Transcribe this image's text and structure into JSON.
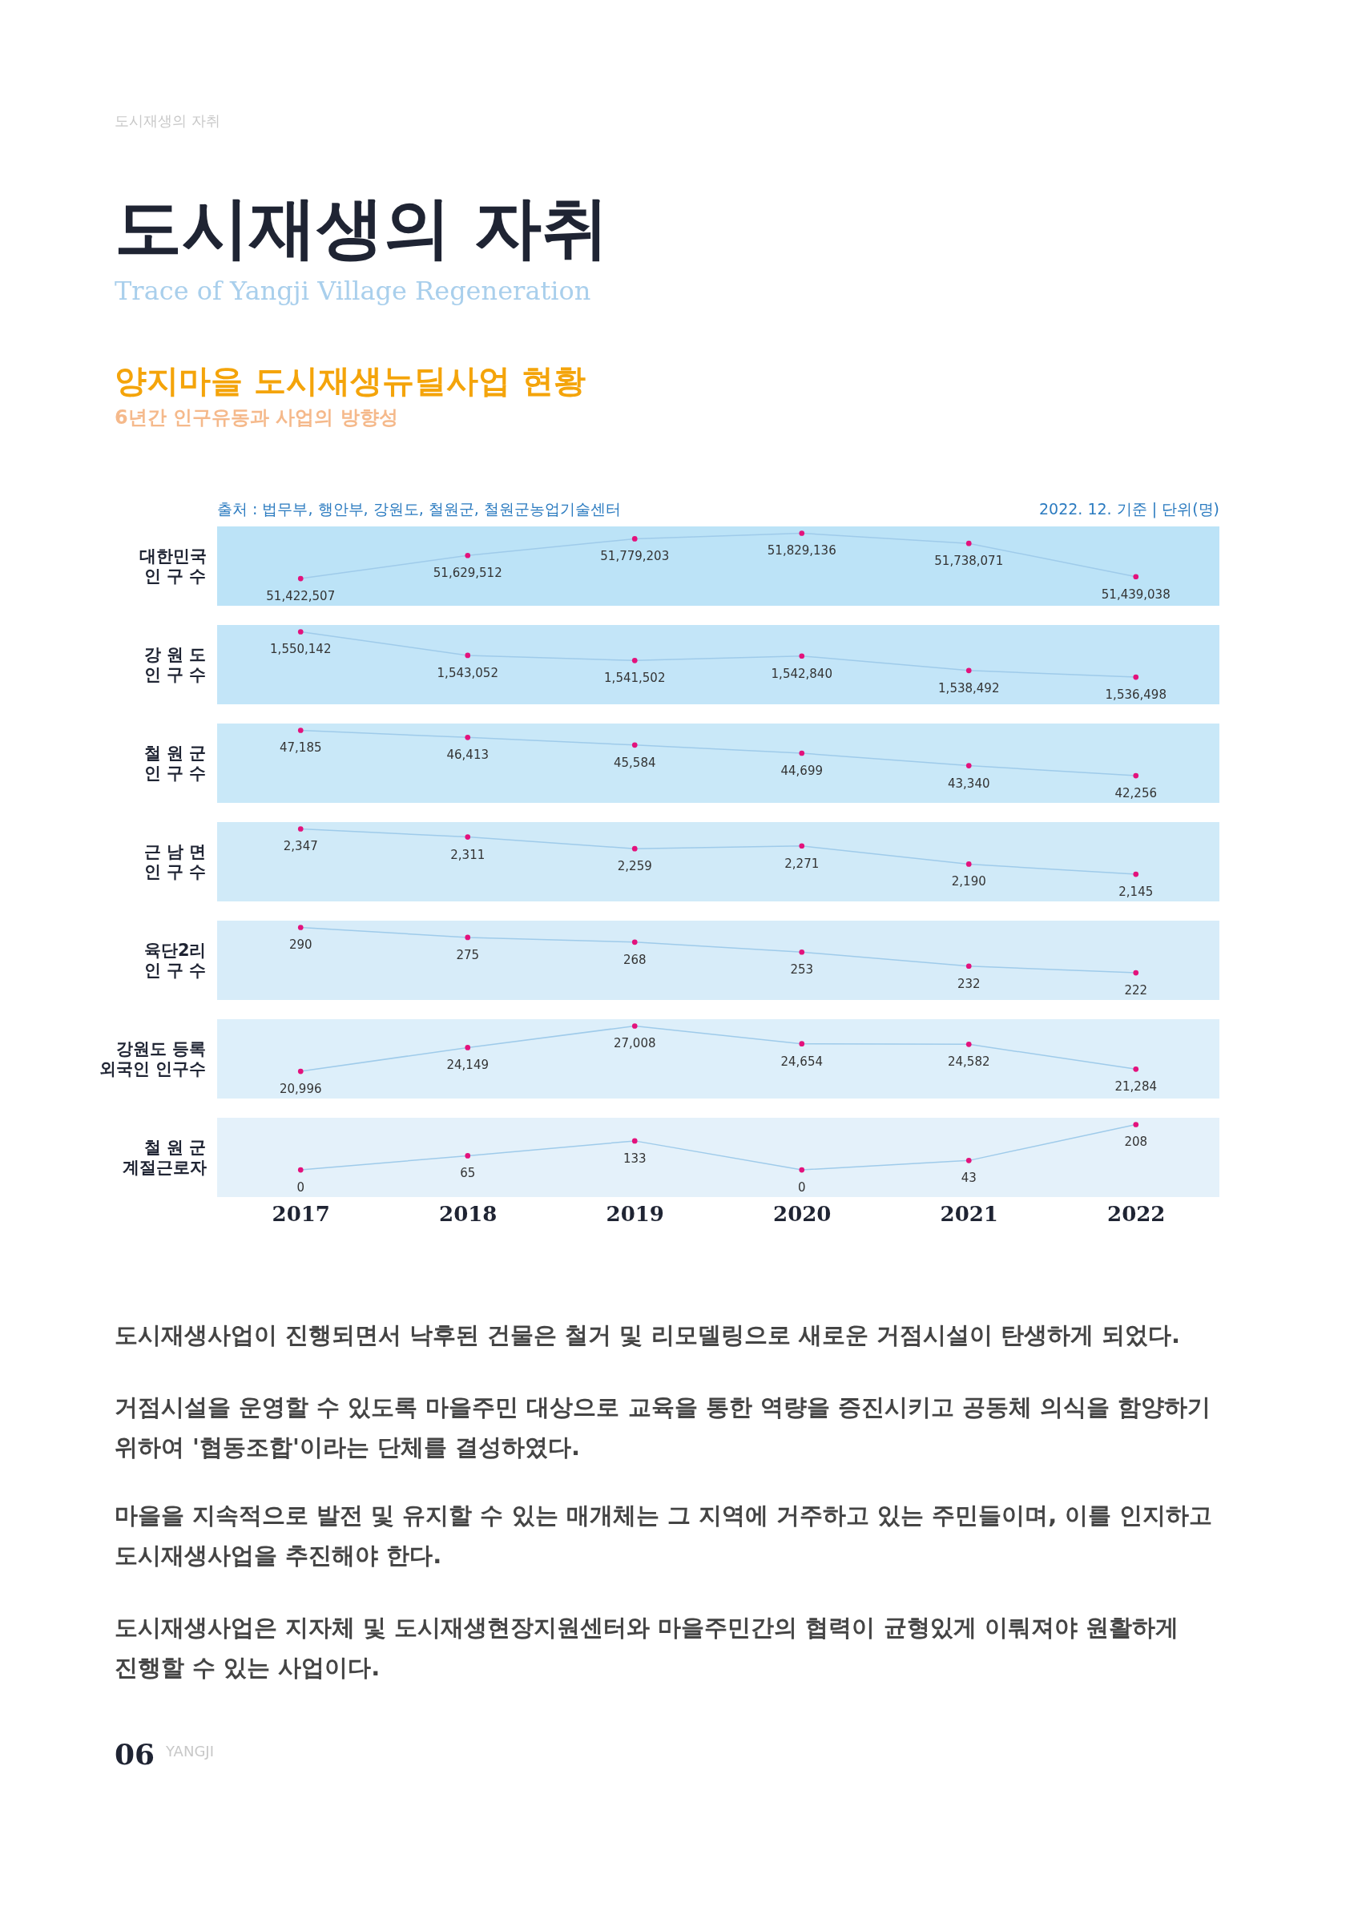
{
  "chart_data": [
    {
      "type": "line",
      "title": "양지마을 도시재생뉴딜사업 현황",
      "subtitle": "6년간 인구유동과 사업의 방향성",
      "annotations": [
        "도시재생의 자취",
        "도시재생의 자취",
        "Trace of Yangji Village Regeneration",
        "출처 : 법무부, 행안부, 강원도, 철원군, 철원군농업기술센터",
        "2022. 12. 기준 | 단위(명)"
      ],
      "ylabel": "대한민국\n인 구 수",
      "categories": [
        "2017",
        "2018",
        "2019",
        "2020",
        "2021",
        "2022"
      ],
      "series": [
        {
          "color": "#e3127c",
          "values": [
            51422507,
            51629512,
            51779203,
            51829136,
            51738071,
            51439038
          ],
          "value_labels": [
            "51,422,507",
            "51,629,512",
            "51,779,203",
            "51,829,136",
            "51,738,071",
            "51,439,038"
          ]
        }
      ],
      "marker": "circle",
      "line_style": "solid",
      "tick_labels": false
    },
    {
      "type": "line",
      "ylabel": "강 원 도\n인 구 수",
      "categories": [
        "2017",
        "2018",
        "2019",
        "2020",
        "2021",
        "2022"
      ],
      "series": [
        {
          "color": "#e3127c",
          "values": [
            1550142,
            1543052,
            1541502,
            1542840,
            1538492,
            1536498
          ],
          "value_labels": [
            "1,550,142",
            "1,543,052",
            "1,541,502",
            "1,542,840",
            "1,538,492",
            "1,536,498"
          ]
        }
      ],
      "marker": "circle",
      "line_style": "solid",
      "tick_labels": false
    },
    {
      "type": "line",
      "ylabel": "철 원 군\n인 구 수",
      "categories": [
        "2017",
        "2018",
        "2019",
        "2020",
        "2021",
        "2022"
      ],
      "series": [
        {
          "color": "#e3127c",
          "values": [
            47185,
            46413,
            45584,
            44699,
            43340,
            42256
          ],
          "value_labels": [
            "47,185",
            "46,413",
            "45,584",
            "44,699",
            "43,340",
            "42,256"
          ]
        }
      ],
      "marker": "circle",
      "line_style": "solid",
      "tick_labels": false
    },
    {
      "type": "line",
      "ylabel": "근 남 면\n인 구 수",
      "categories": [
        "2017",
        "2018",
        "2019",
        "2020",
        "2021",
        "2022"
      ],
      "series": [
        {
          "color": "#e3127c",
          "values": [
            2347,
            2311,
            2259,
            2271,
            2190,
            2145
          ],
          "value_labels": [
            "2,347",
            "2,311",
            "2,259",
            "2,271",
            "2,190",
            "2,145"
          ]
        }
      ],
      "marker": "circle",
      "line_style": "solid",
      "tick_labels": false
    },
    {
      "type": "line",
      "ylabel": "육단2리\n인 구 수",
      "categories": [
        "2017",
        "2018",
        "2019",
        "2020",
        "2021",
        "2022"
      ],
      "series": [
        {
          "color": "#e3127c",
          "values": [
            290,
            275,
            268,
            253,
            232,
            222
          ]
        }
      ],
      "data_labels": true,
      "marker": "circle",
      "line_style": "solid",
      "tick_labels": false
    },
    {
      "type": "line",
      "ylabel": "강원도 등록\n외국인 인구수",
      "categories": [
        "2017",
        "2018",
        "2019",
        "2020",
        "2021",
        "2022"
      ],
      "series": [
        {
          "color": "#e3127c",
          "values": [
            20996,
            24149,
            27008,
            24654,
            24582,
            21284
          ],
          "value_labels": [
            "20,996",
            "24,149",
            "27,008",
            "24,654",
            "24,582",
            "21,284"
          ]
        }
      ],
      "marker": "circle",
      "line_style": "solid",
      "tick_labels": false
    },
    {
      "type": "line",
      "ylabel": "철 원 군\n계절근로자",
      "categories": [
        "2017",
        "2018",
        "2019",
        "2020",
        "2021",
        "2022"
      ],
      "series": [
        {
          "color": "#e3127c",
          "values": [
            0,
            65,
            133,
            0,
            43,
            208
          ]
        }
      ],
      "data_labels": true,
      "marker": "circle",
      "line_style": "solid",
      "tick_labels": "x",
      "annotations": [
        "도시재생사업이 진행되면서 낙후된 건물은 철거 및 리모델링으로 새로운 거점시설이 탄생하게 되었다.",
        "거점시설을 운영할 수 있도록 마을주민 대상으로 교육을 통한 역량을 증진시키고 공동체 의식을 함양하기\n위하여 '협동조합'이라는 단체를 결성하였다.",
        "마을을 지속적으로 발전 및 유지할 수 있는 매개체는 그 지역에 거주하고 있는 주민들이며, 이를 인지하고\n도시재생사업을 추진해야 한다.",
        "도시재생사업은 지자체 및 도시재생현장지원센터와 마을주민간의 협력이 균형있게 이뤄져야 원활하게\n진행할 수 있는 사업이다.",
        "06",
        "YANGJI"
      ]
    }
  ]
}
